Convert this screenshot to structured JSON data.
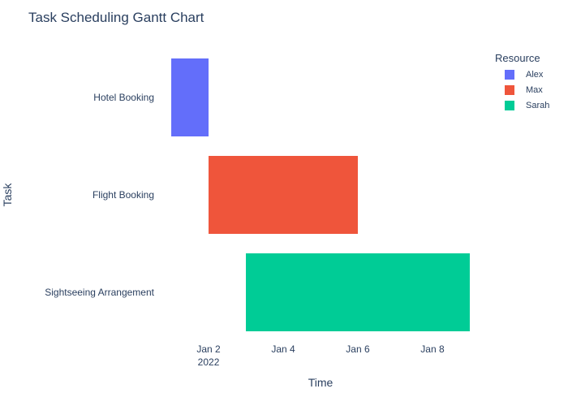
{
  "chart_data": {
    "type": "gantt",
    "title": "Task Scheduling Gantt Chart",
    "xlabel": "Time",
    "ylabel": "Task",
    "xlim": [
      "2022-01-01",
      "2022-01-09"
    ],
    "grid": false,
    "legend": {
      "title": "Resource",
      "placement": "top-right",
      "entries": [
        {
          "name": "Alex",
          "color": "#636efa"
        },
        {
          "name": "Max",
          "color": "#ef553b"
        },
        {
          "name": "Sarah",
          "color": "#00cc96"
        }
      ]
    },
    "x_ticks": [
      {
        "value": "2022-01-02",
        "label": "Jan 2",
        "sublabel": "2022"
      },
      {
        "value": "2022-01-04",
        "label": "Jan 4",
        "sublabel": ""
      },
      {
        "value": "2022-01-06",
        "label": "Jan 6",
        "sublabel": ""
      },
      {
        "value": "2022-01-08",
        "label": "Jan 8",
        "sublabel": ""
      }
    ],
    "tasks": [
      {
        "task": "Hotel Booking",
        "resource": "Alex",
        "start": "2022-01-01",
        "end": "2022-01-02",
        "color": "#636efa"
      },
      {
        "task": "Flight Booking",
        "resource": "Max",
        "start": "2022-01-02",
        "end": "2022-01-06",
        "color": "#ef553b"
      },
      {
        "task": "Sightseeing Arrangement",
        "resource": "Sarah",
        "start": "2022-01-03",
        "end": "2022-01-09",
        "color": "#00cc96"
      }
    ]
  }
}
